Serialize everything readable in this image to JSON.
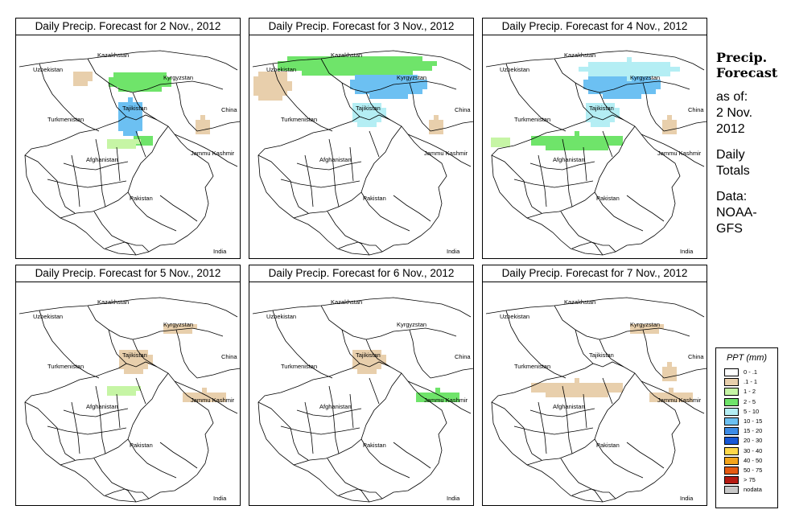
{
  "panels": [
    {
      "title": "Daily Precip. Forecast for  2 Nov., 2012",
      "precip_areas": [
        {
          "region": "north-kyrgyzstan",
          "class": "2-5"
        },
        {
          "region": "north-tajikistan",
          "class": "10-15"
        },
        {
          "region": "pamir",
          "class": "2-5"
        },
        {
          "region": "kazakh-south",
          "class": ".1-1"
        },
        {
          "region": "afghan-ne",
          "class": "1-2"
        },
        {
          "region": "china-west",
          "class": ".1-1"
        }
      ]
    },
    {
      "title": "Daily Precip. Forecast for  3 Nov., 2012",
      "precip_areas": [
        {
          "region": "kazakhstan",
          "class": "2-5"
        },
        {
          "region": "kyrgyzstan",
          "class": "10-15"
        },
        {
          "region": "uzbekistan-north",
          "class": ".1-1"
        },
        {
          "region": "tajikistan",
          "class": "5-10"
        },
        {
          "region": "china-west",
          "class": ".1-1"
        }
      ]
    },
    {
      "title": "Daily Precip. Forecast for  4 Nov., 2012",
      "precip_areas": [
        {
          "region": "kyrgyzstan",
          "class": "10-15"
        },
        {
          "region": "kazakhstan-east",
          "class": "5-10"
        },
        {
          "region": "tajikistan",
          "class": "5-10"
        },
        {
          "region": "afghan-north",
          "class": "2-5"
        },
        {
          "region": "turkmen-east",
          "class": "1-2"
        },
        {
          "region": "china-west",
          "class": ".1-1"
        }
      ]
    },
    {
      "title": "Daily Precip. Forecast for  5 Nov., 2012",
      "precip_areas": [
        {
          "region": "tajikistan",
          "class": ".1-1"
        },
        {
          "region": "afghan-ne",
          "class": "1-2"
        },
        {
          "region": "kashmir",
          "class": ".1-1"
        },
        {
          "region": "kyrgyzstan-east",
          "class": ".1-1"
        }
      ]
    },
    {
      "title": "Daily Precip. Forecast for  6 Nov., 2012",
      "precip_areas": [
        {
          "region": "kashmir",
          "class": "2-5"
        },
        {
          "region": "tajikistan",
          "class": ".1-1"
        }
      ]
    },
    {
      "title": "Daily Precip. Forecast for  7 Nov., 2012",
      "precip_areas": [
        {
          "region": "kyrgyzstan-east",
          "class": ".1-1"
        },
        {
          "region": "afghan-north",
          "class": ".1-1"
        },
        {
          "region": "kashmir",
          "class": ".1-1"
        },
        {
          "region": "china-west",
          "class": ".1-1"
        }
      ]
    }
  ],
  "labels": {
    "kazakhstan": "Kazakhstan",
    "uzbekistan": "Uzbekistan",
    "kyrgyzstan": "Kyrgyzstan",
    "tajikistan": "Tajikistan",
    "china": "China",
    "turkmenistan": "Turkmenistan",
    "afghanistan": "Afghanistan",
    "jammu": "Jammu Kashmir",
    "pakistan": "Pakistan",
    "india": "India"
  },
  "sidebar": {
    "title_line1": "Precip.",
    "title_line2": "Forecast",
    "asof_line1": "as of:",
    "asof_line2": "2 Nov.",
    "asof_line3": "2012",
    "daily_line1": "Daily",
    "daily_line2": "Totals",
    "data_line1": "Data:",
    "data_line2": "NOAA-",
    "data_line3": "GFS"
  },
  "legend": {
    "title": "PPT (mm)",
    "items": [
      {
        "label": "0 - .1",
        "color": "#ffffff"
      },
      {
        "label": ".1 - 1",
        "color": "#e8cfac"
      },
      {
        "label": "1 - 2",
        "color": "#c6f5a5"
      },
      {
        "label": "2 - 5",
        "color": "#6fe46a"
      },
      {
        "label": "5 - 10",
        "color": "#b4eef4"
      },
      {
        "label": "10 - 15",
        "color": "#6cc0f2"
      },
      {
        "label": "15 - 20",
        "color": "#3d8be6"
      },
      {
        "label": "20 - 30",
        "color": "#1858d6"
      },
      {
        "label": "30 - 40",
        "color": "#ffd84a"
      },
      {
        "label": "40 - 50",
        "color": "#f5a51c"
      },
      {
        "label": "50 - 75",
        "color": "#e55a12"
      },
      {
        "label": "> 75",
        "color": "#b51a12"
      },
      {
        "label": "nodata",
        "color": "#c8c8c8"
      }
    ]
  }
}
